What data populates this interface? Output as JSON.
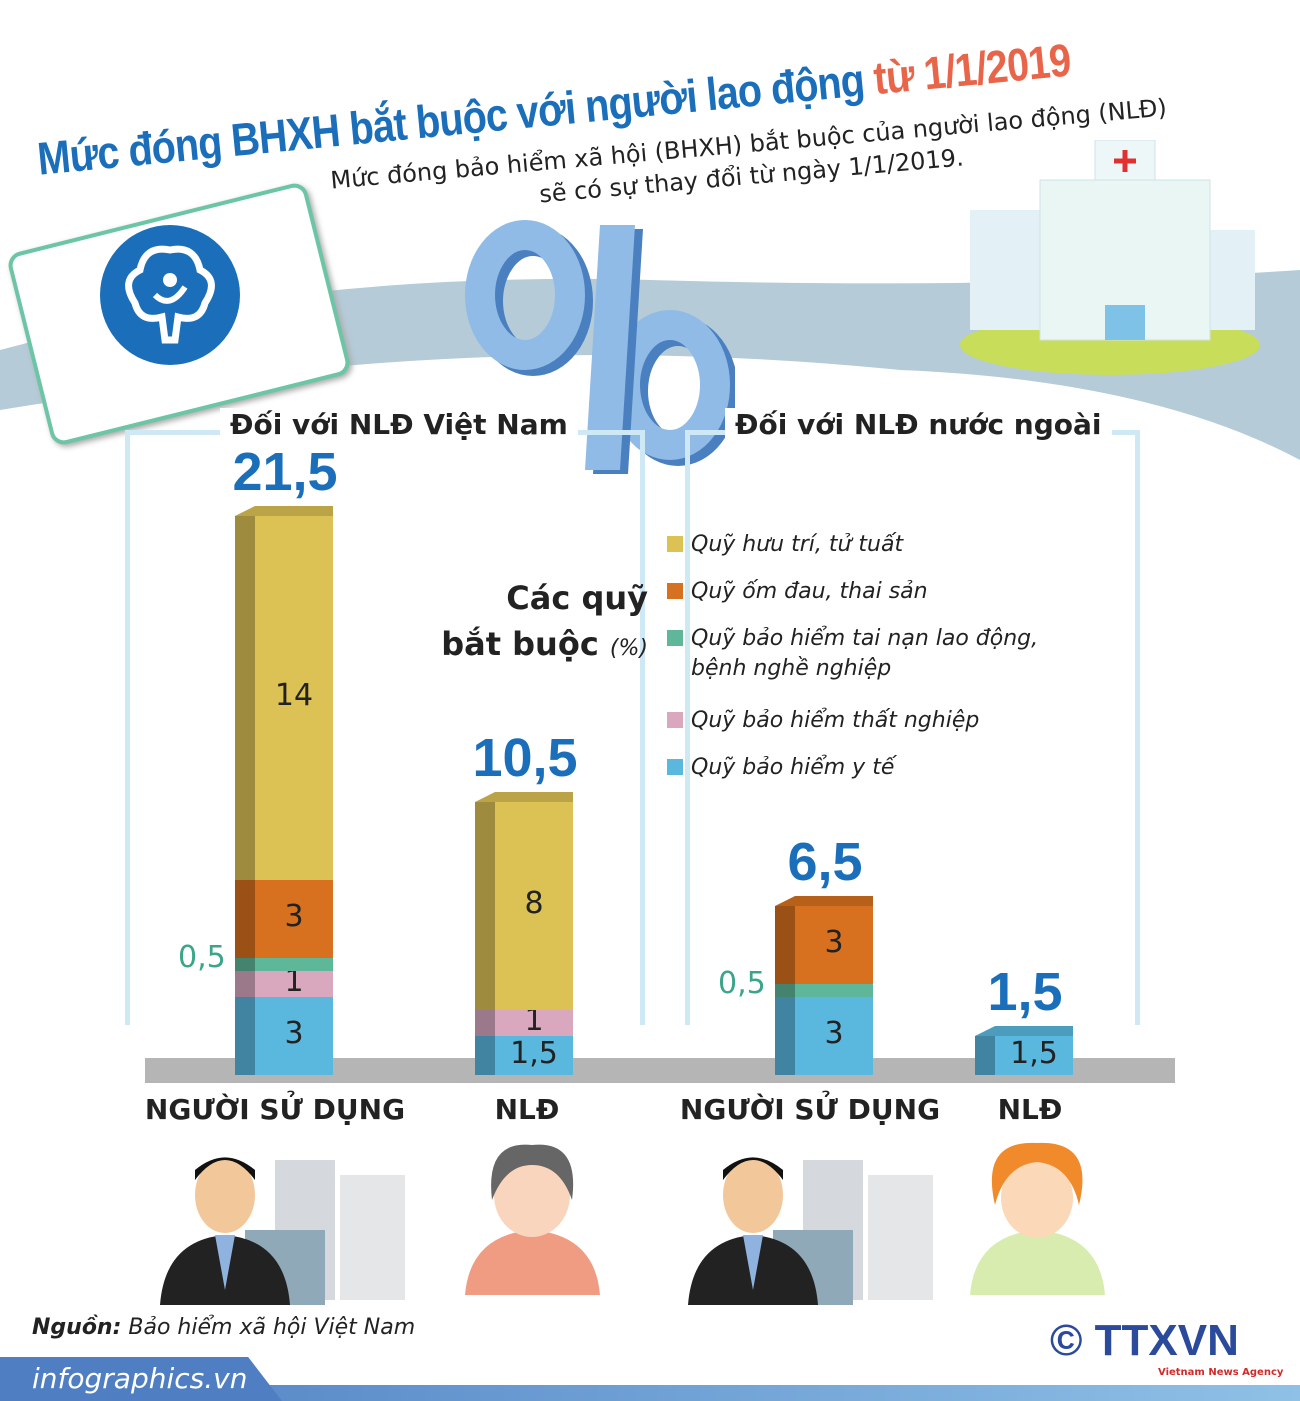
{
  "title": {
    "main": "Mức đóng BHXH bắt buộc với người lao động",
    "highlight": "từ 1/1/2019"
  },
  "subtitle": [
    "Mức đóng bảo hiểm xã hội (BHXH) bắt buộc của người lao động (NLĐ)",
    "sẽ có sự thay đổi từ ngày 1/1/2019."
  ],
  "colors": {
    "accent": "#1b6fba",
    "highlight": "#e8654a"
  },
  "icons": [
    "vss-logo-icon",
    "percent-icon",
    "hospital-icon",
    "employer-person-icon",
    "worker-person-icon"
  ],
  "chart_data": {
    "type": "bar",
    "stacked": true,
    "unit": "%",
    "legend_title": [
      "Các quỹ",
      "bắt buộc"
    ],
    "legend_unit": "(%)",
    "groups": [
      "Đối với NLĐ Việt Nam",
      "Đối với NLĐ nước ngoài"
    ],
    "categories": [
      "NGƯỜI SỬ DỤNG",
      "NLĐ",
      "NGƯỜI SỬ DỤNG",
      "NLĐ"
    ],
    "category_group": [
      0,
      0,
      1,
      1
    ],
    "series": [
      {
        "name": "Quỹ bảo hiểm y tế",
        "color": "#5ab8df",
        "values": [
          3,
          1.5,
          3,
          1.5
        ],
        "labels": [
          "3",
          "1,5",
          "3",
          "1,5"
        ]
      },
      {
        "name": "Quỹ bảo hiểm thất nghiệp",
        "color": "#d9a8bf",
        "values": [
          1,
          1,
          0,
          0
        ],
        "labels": [
          "1",
          "1",
          "",
          ""
        ]
      },
      {
        "name": "Quỹ bảo hiểm tai nạn lao động, bệnh nghề nghiệp",
        "color": "#5fb79a",
        "values": [
          0.5,
          0,
          0.5,
          0
        ],
        "labels": [
          "0,5",
          "",
          "0,5",
          ""
        ]
      },
      {
        "name": "Quỹ ốm đau, thai sản",
        "color": "#d7711f",
        "values": [
          3,
          0,
          3,
          0
        ],
        "labels": [
          "3",
          "",
          "3",
          ""
        ]
      },
      {
        "name": "Quỹ hưu trí, tử tuất",
        "color": "#dcc155",
        "values": [
          14,
          8,
          0,
          0
        ],
        "labels": [
          "14",
          "8",
          "",
          ""
        ]
      }
    ],
    "totals": [
      "21,5",
      "10,5",
      "6,5",
      "1,5"
    ],
    "legend_order": [
      4,
      3,
      2,
      1,
      0
    ],
    "legend_lines": [
      [
        "Quỹ hưu trí, tử tuất"
      ],
      [
        "Quỹ ốm đau, thai sản"
      ],
      [
        "Quỹ bảo hiểm tai nạn lao động,",
        "bệnh nghề nghiệp"
      ],
      [
        "Quỹ bảo hiểm thất nghiệp"
      ],
      [
        "Quỹ bảo hiểm y tế"
      ]
    ]
  },
  "source": {
    "label": "Nguồn:",
    "text": "Bảo hiểm xã hội Việt Nam"
  },
  "footer": {
    "site": "infographics.vn",
    "brand": "TTXVN",
    "brand_sub": "Vietnam News Agency",
    "copyright": "©"
  }
}
